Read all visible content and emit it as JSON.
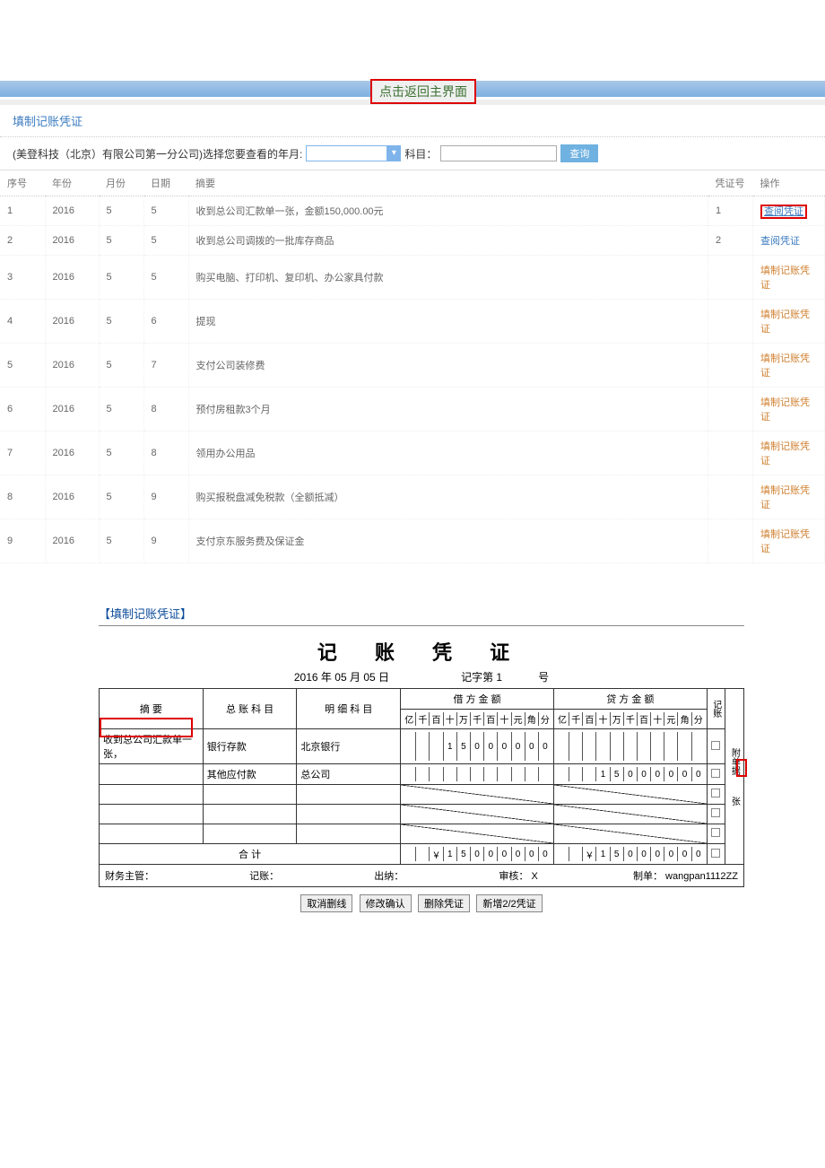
{
  "topbar": {
    "return_label": "点击返回主界面"
  },
  "section": {
    "title": "填制记账凭证"
  },
  "filter": {
    "prefix": "(美登科技（北京）有限公司第一分公司)选择您要查看的年月:",
    "subject_label": "科目：",
    "query_label": "查询"
  },
  "table": {
    "headers": {
      "seq": "序号",
      "year": "年份",
      "month": "月份",
      "day": "日期",
      "summary": "摘要",
      "vno": "凭证号",
      "op": "操作"
    },
    "rows": [
      {
        "seq": "1",
        "year": "2016",
        "month": "5",
        "day": "5",
        "summary": "收到总公司汇款单一张，金额150,000.00元",
        "vno": "1",
        "op": "查阅凭证",
        "op_style": "blue",
        "hl": true
      },
      {
        "seq": "2",
        "year": "2016",
        "month": "5",
        "day": "5",
        "summary": "收到总公司调拨的一批库存商品",
        "vno": "2",
        "op": "查阅凭证",
        "op_style": "blue"
      },
      {
        "seq": "3",
        "year": "2016",
        "month": "5",
        "day": "5",
        "summary": "购买电脑、打印机、复印机、办公家具付款",
        "vno": "",
        "op": "填制记账凭证",
        "op_style": "orange"
      },
      {
        "seq": "4",
        "year": "2016",
        "month": "5",
        "day": "6",
        "summary": "提现",
        "vno": "",
        "op": "填制记账凭证",
        "op_style": "orange"
      },
      {
        "seq": "5",
        "year": "2016",
        "month": "5",
        "day": "7",
        "summary": "支付公司装修费",
        "vno": "",
        "op": "填制记账凭证",
        "op_style": "orange"
      },
      {
        "seq": "6",
        "year": "2016",
        "month": "5",
        "day": "8",
        "summary": "预付房租款3个月",
        "vno": "",
        "op": "填制记账凭证",
        "op_style": "orange"
      },
      {
        "seq": "7",
        "year": "2016",
        "month": "5",
        "day": "8",
        "summary": "领用办公用品",
        "vno": "",
        "op": "填制记账凭证",
        "op_style": "orange"
      },
      {
        "seq": "8",
        "year": "2016",
        "month": "5",
        "day": "9",
        "summary": "购买报税盘减免税款（全额抵减）",
        "vno": "",
        "op": "填制记账凭证",
        "op_style": "orange"
      },
      {
        "seq": "9",
        "year": "2016",
        "month": "5",
        "day": "9",
        "summary": "支付京东服务费及保证金",
        "vno": "",
        "op": "填制记账凭证",
        "op_style": "orange"
      }
    ]
  },
  "voucher": {
    "caption": "【填制记账凭证】",
    "title": "记 账 凭 证",
    "date": {
      "year": "2016",
      "ylab": "年",
      "month": "05",
      "mlab": "月",
      "day": "05",
      "dlab": "日"
    },
    "record_no_label": "记字第",
    "record_no": "1",
    "record_no_suffix": "号",
    "headers": {
      "summary": "摘    要",
      "ledger": "总 账 科 目",
      "detail": "明 细 科 目",
      "debit": "借 方 金 额",
      "credit": "贷 方 金 额",
      "record_col": "记账",
      "check_col": "符号",
      "attach": "附单据",
      "sheets": "张"
    },
    "digit_labels": [
      "亿",
      "千",
      "百",
      "十",
      "万",
      "千",
      "百",
      "十",
      "元",
      "角",
      "分"
    ],
    "rows": [
      {
        "summary": "收到总公司汇款单一张，",
        "ledger": "银行存款",
        "detail": "北京银行",
        "debit": [
          "",
          "",
          "",
          "1",
          "5",
          "0",
          "0",
          "0",
          "0",
          "0",
          "0"
        ],
        "credit": [
          "",
          "",
          "",
          "",
          "",
          "",
          "",
          "",
          "",
          "",
          ""
        ]
      },
      {
        "summary": "",
        "ledger": "其他应付款",
        "detail": "总公司",
        "debit": [
          "",
          "",
          "",
          "",
          "",
          "",
          "",
          "",
          "",
          "",
          ""
        ],
        "credit": [
          "",
          "",
          "",
          "1",
          "5",
          "0",
          "0",
          "0",
          "0",
          "0",
          "0"
        ]
      },
      {
        "summary": "",
        "ledger": "",
        "detail": "",
        "debit": null,
        "credit": null,
        "diag": true
      },
      {
        "summary": "",
        "ledger": "",
        "detail": "",
        "debit": null,
        "credit": null,
        "diag": true
      },
      {
        "summary": "",
        "ledger": "",
        "detail": "",
        "debit": null,
        "credit": null,
        "diag": true
      }
    ],
    "total_label": "合 计",
    "total_debit": [
      "",
      "",
      "￥",
      "1",
      "5",
      "0",
      "0",
      "0",
      "0",
      "0",
      "0"
    ],
    "total_credit": [
      "",
      "",
      "￥",
      "1",
      "5",
      "0",
      "0",
      "0",
      "0",
      "0",
      "0"
    ],
    "footer": {
      "manager": "财务主管：",
      "recorder": "记账：",
      "cashier": "出纳：",
      "reviewer": "审核：",
      "reviewer_val": "X",
      "maker": "制单：",
      "maker_val": "wangpan1112ZZ"
    },
    "buttons": {
      "cancel": "取消删线",
      "confirm": "修改确认",
      "delete": "删除凭证",
      "add": "新增2/2凭证"
    }
  },
  "colors": {
    "link_blue": "#3a7bc0",
    "link_orange": "#d08030",
    "red": "#d00000"
  }
}
